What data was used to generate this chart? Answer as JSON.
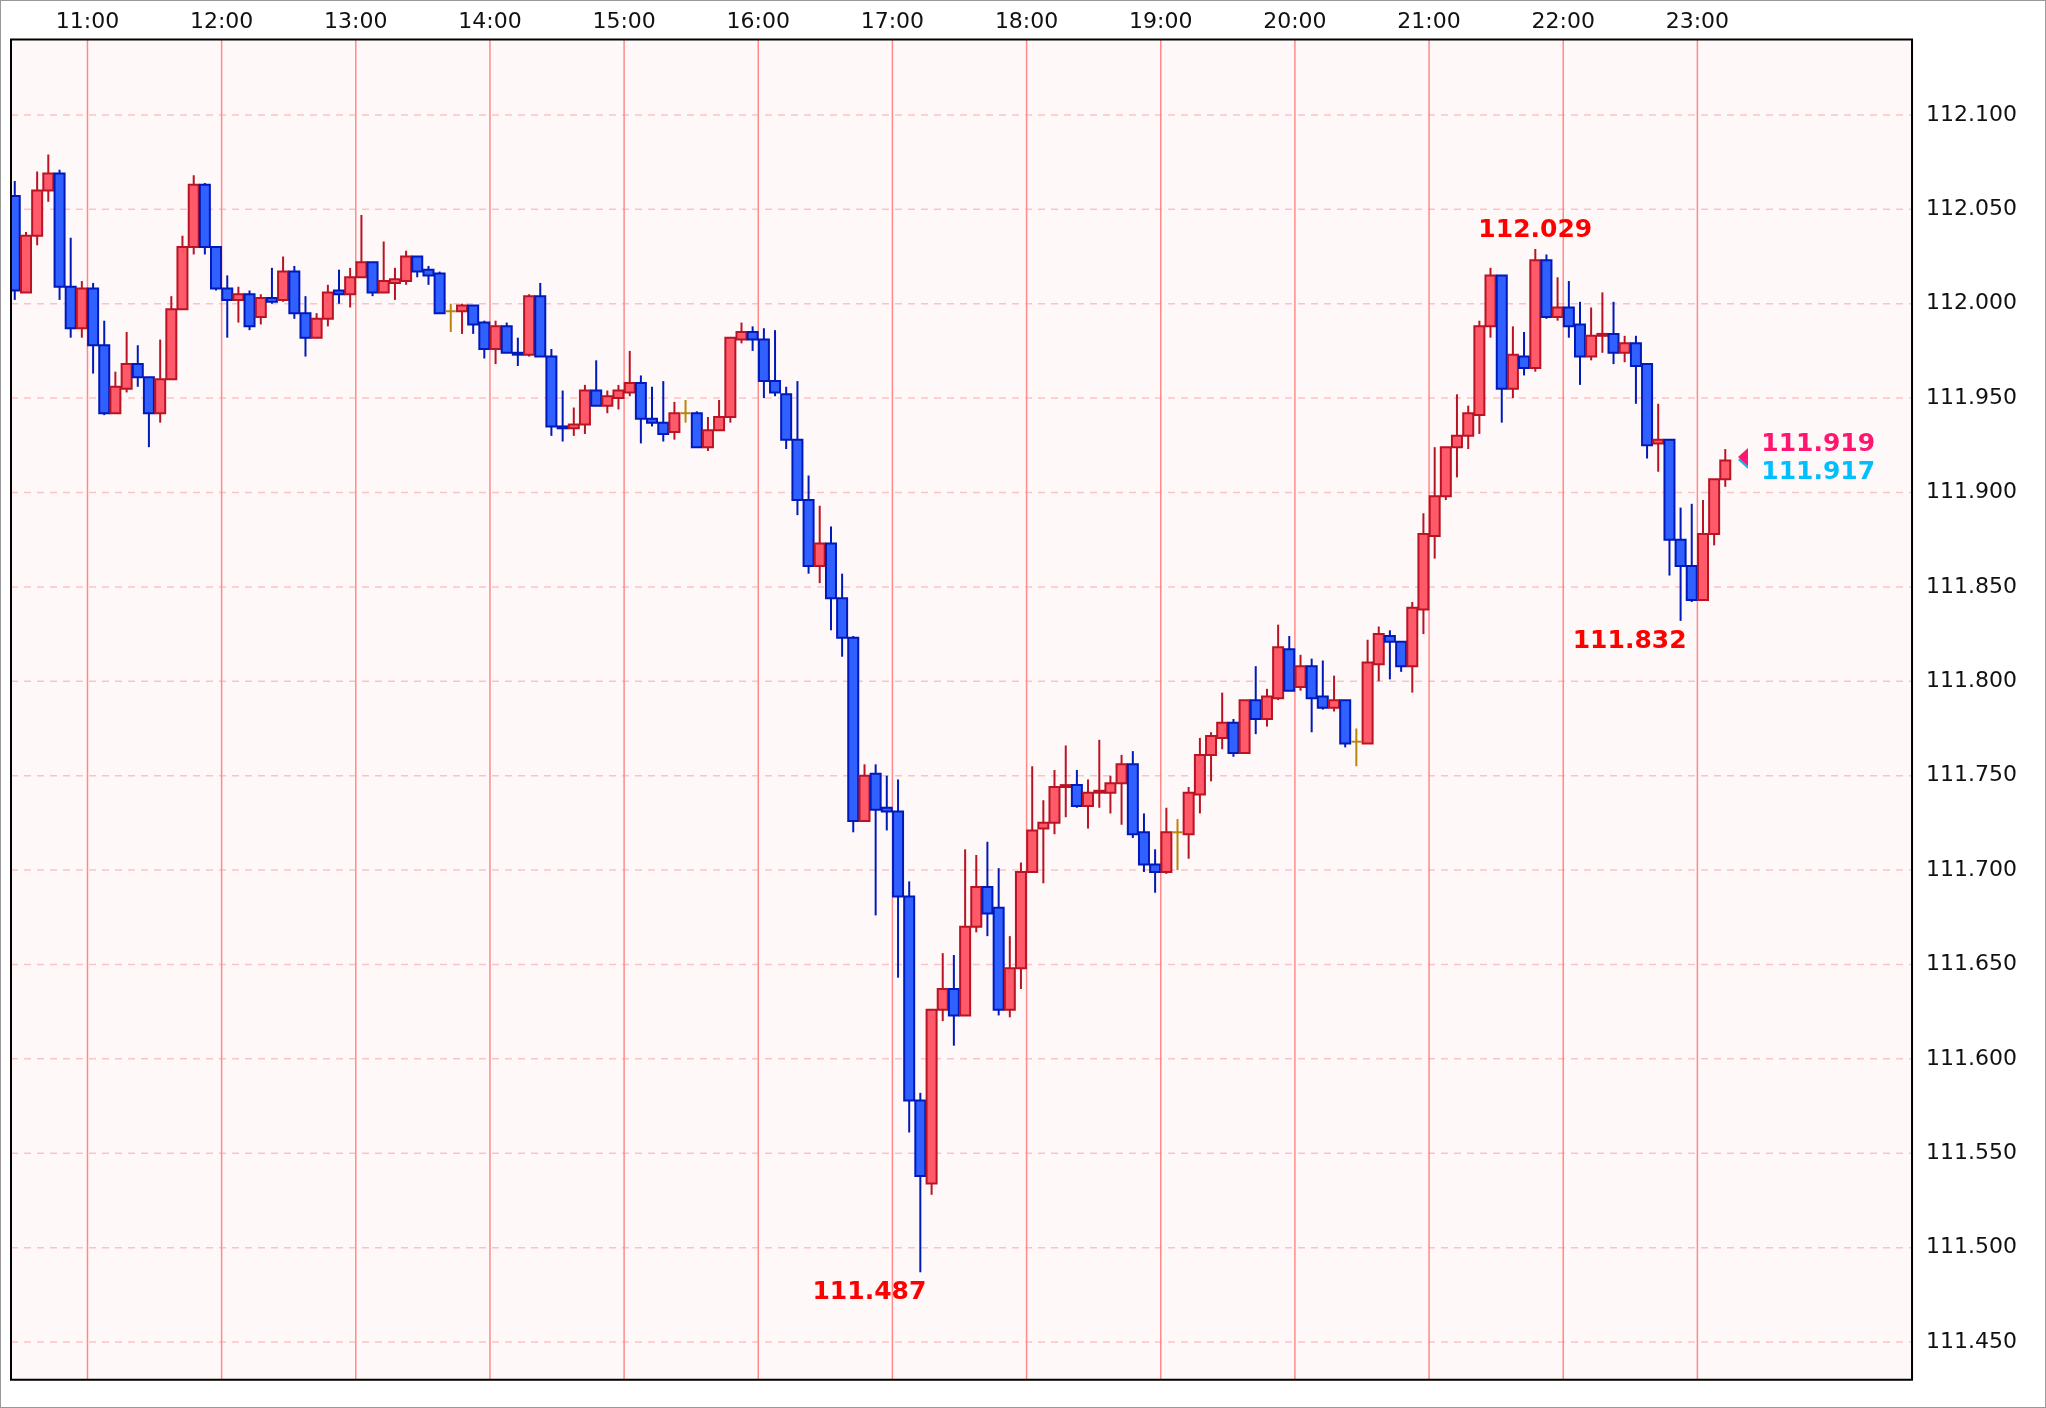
{
  "chart_data": {
    "type": "candlestick",
    "x": [
      10.458,
      10.542,
      10.625,
      10.708,
      10.792,
      10.875,
      10.958,
      11.042,
      11.125,
      11.208,
      11.292,
      11.375,
      11.458,
      11.542,
      11.625,
      11.708,
      11.792,
      11.875,
      11.958,
      12.042,
      12.125,
      12.208,
      12.292,
      12.375,
      12.458,
      12.542,
      12.625,
      12.708,
      12.792,
      12.875,
      12.958,
      13.042,
      13.125,
      13.208,
      13.292,
      13.375,
      13.458,
      13.542,
      13.625,
      13.708,
      13.792,
      13.875,
      13.958,
      14.042,
      14.125,
      14.208,
      14.292,
      14.375,
      14.458,
      14.542,
      14.625,
      14.708,
      14.792,
      14.875,
      14.958,
      15.042,
      15.125,
      15.208,
      15.292,
      15.375,
      15.458,
      15.542,
      15.625,
      15.708,
      15.792,
      15.875,
      15.958,
      16.042,
      16.125,
      16.208,
      16.292,
      16.375,
      16.458,
      16.542,
      16.625,
      16.708,
      16.792,
      16.875,
      16.958,
      17.042,
      17.125,
      17.208,
      17.292,
      17.375,
      17.458,
      17.542,
      17.625,
      17.708,
      17.792,
      17.875,
      17.958,
      18.042,
      18.125,
      18.208,
      18.292,
      18.375,
      18.458,
      18.542,
      18.625,
      18.708,
      18.792,
      18.875,
      18.958,
      19.042,
      19.125,
      19.208,
      19.292,
      19.375,
      19.458,
      19.542,
      19.625,
      19.708,
      19.792,
      19.875,
      19.958,
      20.042,
      20.125,
      20.208,
      20.292,
      20.375,
      20.458,
      20.542,
      20.625,
      20.708,
      20.792,
      20.875,
      20.958,
      21.042,
      21.125,
      21.208,
      21.292,
      21.375,
      21.458,
      21.542,
      21.625,
      21.708,
      21.792,
      21.875,
      21.958,
      22.042,
      22.125,
      22.208,
      22.292,
      22.375,
      22.458,
      22.542,
      22.625,
      22.708,
      22.792,
      22.875,
      22.958,
      23.042,
      23.125,
      23.208
    ],
    "ohlc": [
      [
        112.057,
        112.065,
        112.002,
        112.007
      ],
      [
        112.006,
        112.038,
        112.006,
        112.036
      ],
      [
        112.036,
        112.07,
        112.031,
        112.06
      ],
      [
        112.06,
        112.079,
        112.054,
        112.069
      ],
      [
        112.069,
        112.071,
        112.002,
        112.009
      ],
      [
        112.009,
        112.035,
        111.982,
        111.987
      ],
      [
        111.987,
        112.012,
        111.982,
        112.008
      ],
      [
        112.008,
        112.011,
        111.963,
        111.978
      ],
      [
        111.978,
        111.991,
        111.941,
        111.942
      ],
      [
        111.942,
        111.964,
        111.942,
        111.956
      ],
      [
        111.955,
        111.985,
        111.953,
        111.968
      ],
      [
        111.968,
        111.978,
        111.956,
        111.961
      ],
      [
        111.961,
        111.961,
        111.924,
        111.942
      ],
      [
        111.942,
        111.981,
        111.937,
        111.96
      ],
      [
        111.96,
        112.004,
        111.96,
        111.997
      ],
      [
        111.997,
        112.036,
        111.997,
        112.03
      ],
      [
        112.03,
        112.068,
        112.026,
        112.063
      ],
      [
        112.063,
        112.064,
        112.026,
        112.03
      ],
      [
        112.03,
        112.03,
        112.007,
        112.008
      ],
      [
        112.008,
        112.015,
        111.982,
        112.002
      ],
      [
        112.002,
        112.009,
        111.99,
        112.005
      ],
      [
        112.005,
        112.007,
        111.986,
        111.988
      ],
      [
        111.993,
        112.005,
        111.989,
        112.003
      ],
      [
        112.003,
        112.019,
        112.0,
        112.001
      ],
      [
        112.002,
        112.025,
        112.001,
        112.017
      ],
      [
        112.017,
        112.02,
        111.992,
        111.995
      ],
      [
        111.995,
        112.004,
        111.972,
        111.982
      ],
      [
        111.982,
        111.995,
        111.982,
        111.992
      ],
      [
        111.992,
        112.01,
        111.988,
        112.006
      ],
      [
        112.007,
        112.018,
        112.0,
        112.005
      ],
      [
        112.005,
        112.019,
        111.998,
        112.014
      ],
      [
        112.014,
        112.047,
        112.014,
        112.022
      ],
      [
        112.022,
        112.022,
        112.004,
        112.006
      ],
      [
        112.006,
        112.033,
        112.006,
        112.012
      ],
      [
        112.011,
        112.019,
        112.002,
        112.013
      ],
      [
        112.012,
        112.028,
        112.01,
        112.025
      ],
      [
        112.025,
        112.025,
        112.014,
        112.017
      ],
      [
        112.018,
        112.02,
        112.01,
        112.015
      ],
      [
        112.016,
        112.017,
        111.995,
        111.995
      ],
      [
        111.996,
        112.0,
        111.985,
        111.996
      ],
      [
        111.996,
        112.0,
        111.984,
        111.999
      ],
      [
        111.999,
        111.999,
        111.984,
        111.989
      ],
      [
        111.99,
        111.991,
        111.971,
        111.976
      ],
      [
        111.976,
        111.991,
        111.968,
        111.988
      ],
      [
        111.988,
        111.99,
        111.974,
        111.974
      ],
      [
        111.974,
        111.982,
        111.967,
        111.973
      ],
      [
        111.973,
        112.005,
        111.972,
        112.004
      ],
      [
        112.004,
        112.011,
        111.972,
        111.972
      ],
      [
        111.972,
        111.976,
        111.93,
        111.935
      ],
      [
        111.935,
        111.954,
        111.927,
        111.934
      ],
      [
        111.934,
        111.945,
        111.93,
        111.936
      ],
      [
        111.936,
        111.957,
        111.931,
        111.954
      ],
      [
        111.954,
        111.97,
        111.946,
        111.946
      ],
      [
        111.946,
        111.954,
        111.942,
        111.951
      ],
      [
        111.95,
        111.957,
        111.944,
        111.954
      ],
      [
        111.953,
        111.975,
        111.951,
        111.958
      ],
      [
        111.958,
        111.962,
        111.926,
        111.939
      ],
      [
        111.939,
        111.956,
        111.935,
        111.937
      ],
      [
        111.937,
        111.959,
        111.927,
        111.931
      ],
      [
        111.932,
        111.948,
        111.928,
        111.942
      ],
      [
        111.942,
        111.949,
        111.937,
        111.942
      ],
      [
        111.942,
        111.943,
        111.924,
        111.924
      ],
      [
        111.924,
        111.94,
        111.922,
        111.933
      ],
      [
        111.933,
        111.949,
        111.933,
        111.94
      ],
      [
        111.94,
        111.982,
        111.937,
        111.982
      ],
      [
        111.981,
        111.99,
        111.979,
        111.985
      ],
      [
        111.985,
        111.988,
        111.975,
        111.981
      ],
      [
        111.981,
        111.987,
        111.95,
        111.959
      ],
      [
        111.959,
        111.986,
        111.951,
        111.953
      ],
      [
        111.952,
        111.956,
        111.923,
        111.928
      ],
      [
        111.928,
        111.959,
        111.888,
        111.896
      ],
      [
        111.896,
        111.909,
        111.857,
        111.861
      ],
      [
        111.861,
        111.893,
        111.852,
        111.873
      ],
      [
        111.873,
        111.882,
        111.827,
        111.844
      ],
      [
        111.844,
        111.857,
        111.813,
        111.823
      ],
      [
        111.823,
        111.824,
        111.72,
        111.726
      ],
      [
        111.726,
        111.756,
        111.726,
        111.75
      ],
      [
        111.751,
        111.756,
        111.676,
        111.732
      ],
      [
        111.733,
        111.75,
        111.721,
        111.731
      ],
      [
        111.731,
        111.748,
        111.643,
        111.686
      ],
      [
        111.686,
        111.694,
        111.561,
        111.578
      ],
      [
        111.578,
        111.582,
        111.487,
        111.538
      ],
      [
        111.534,
        111.626,
        111.528,
        111.626
      ],
      [
        111.626,
        111.656,
        111.62,
        111.637
      ],
      [
        111.637,
        111.655,
        111.607,
        111.623
      ],
      [
        111.623,
        111.711,
        111.623,
        111.67
      ],
      [
        111.67,
        111.708,
        111.667,
        111.691
      ],
      [
        111.691,
        111.715,
        111.665,
        111.677
      ],
      [
        111.68,
        111.701,
        111.623,
        111.626
      ],
      [
        111.626,
        111.665,
        111.622,
        111.648
      ],
      [
        111.648,
        111.704,
        111.637,
        111.699
      ],
      [
        111.699,
        111.755,
        111.699,
        111.721
      ],
      [
        111.722,
        111.737,
        111.693,
        111.725
      ],
      [
        111.725,
        111.753,
        111.719,
        111.744
      ],
      [
        111.744,
        111.766,
        111.728,
        111.745
      ],
      [
        111.745,
        111.753,
        111.733,
        111.734
      ],
      [
        111.734,
        111.748,
        111.722,
        111.741
      ],
      [
        111.741,
        111.769,
        111.733,
        111.742
      ],
      [
        111.741,
        111.75,
        111.73,
        111.746
      ],
      [
        111.746,
        111.761,
        111.724,
        111.756
      ],
      [
        111.756,
        111.763,
        111.717,
        111.719
      ],
      [
        111.72,
        111.73,
        111.699,
        111.703
      ],
      [
        111.703,
        111.711,
        111.688,
        111.699
      ],
      [
        111.699,
        111.733,
        111.698,
        111.72
      ],
      [
        111.72,
        111.727,
        111.7,
        111.72
      ],
      [
        111.719,
        111.744,
        111.706,
        111.741
      ],
      [
        111.74,
        111.77,
        111.73,
        111.761
      ],
      [
        111.761,
        111.773,
        111.747,
        111.771
      ],
      [
        111.77,
        111.794,
        111.764,
        111.778
      ],
      [
        111.778,
        111.78,
        111.76,
        111.762
      ],
      [
        111.762,
        111.79,
        111.762,
        111.79
      ],
      [
        111.79,
        111.808,
        111.772,
        111.78
      ],
      [
        111.78,
        111.796,
        111.776,
        111.792
      ],
      [
        111.791,
        111.83,
        111.79,
        111.818
      ],
      [
        111.817,
        111.824,
        111.795,
        111.795
      ],
      [
        111.797,
        111.814,
        111.795,
        111.808
      ],
      [
        111.808,
        111.812,
        111.773,
        111.791
      ],
      [
        111.792,
        111.811,
        111.785,
        111.786
      ],
      [
        111.786,
        111.803,
        111.784,
        111.79
      ],
      [
        111.79,
        111.79,
        111.765,
        111.767
      ],
      [
        111.768,
        111.775,
        111.755,
        111.768
      ],
      [
        111.767,
        111.822,
        111.767,
        111.81
      ],
      [
        111.809,
        111.829,
        111.8,
        111.825
      ],
      [
        111.824,
        111.827,
        111.801,
        111.821
      ],
      [
        111.821,
        111.821,
        111.805,
        111.808
      ],
      [
        111.808,
        111.842,
        111.794,
        111.839
      ],
      [
        111.838,
        111.889,
        111.825,
        111.878
      ],
      [
        111.877,
        111.924,
        111.865,
        111.898
      ],
      [
        111.898,
        111.924,
        111.896,
        111.924
      ],
      [
        111.924,
        111.952,
        111.908,
        111.93
      ],
      [
        111.93,
        111.946,
        111.923,
        111.942
      ],
      [
        111.941,
        111.991,
        111.931,
        111.988
      ],
      [
        111.988,
        112.019,
        111.982,
        112.015
      ],
      [
        112.015,
        112.015,
        111.937,
        111.955
      ],
      [
        111.955,
        111.988,
        111.95,
        111.973
      ],
      [
        111.972,
        111.985,
        111.962,
        111.966
      ],
      [
        111.966,
        112.029,
        111.964,
        112.023
      ],
      [
        112.023,
        112.026,
        111.992,
        111.993
      ],
      [
        111.993,
        112.014,
        111.991,
        111.998
      ],
      [
        111.998,
        112.012,
        111.982,
        111.988
      ],
      [
        111.989,
        112.001,
        111.957,
        111.972
      ],
      [
        111.972,
        111.998,
        111.97,
        111.983
      ],
      [
        111.983,
        112.006,
        111.974,
        111.984
      ],
      [
        111.984,
        112.001,
        111.968,
        111.974
      ],
      [
        111.974,
        111.983,
        111.969,
        111.979
      ],
      [
        111.979,
        111.983,
        111.947,
        111.967
      ],
      [
        111.968,
        111.968,
        111.918,
        111.925
      ],
      [
        111.926,
        111.947,
        111.911,
        111.928
      ],
      [
        111.928,
        111.928,
        111.856,
        111.875
      ],
      [
        111.875,
        111.892,
        111.832,
        111.861
      ],
      [
        111.861,
        111.894,
        111.842,
        111.843
      ],
      [
        111.843,
        111.896,
        111.843,
        111.878
      ],
      [
        111.878,
        111.907,
        111.872,
        111.907
      ],
      [
        111.907,
        111.923,
        111.903,
        111.917
      ]
    ],
    "colors": [
      "#3060ff",
      "#ff5a6a",
      "#ff5a6a",
      "#ff5a6a",
      "#3060ff",
      "#3060ff",
      "#ff5a6a",
      "#3060ff",
      "#3060ff",
      "#ff5a6a",
      "#ff5a6a",
      "#3060ff",
      "#3060ff",
      "#ff5a6a",
      "#ff5a6a",
      "#ff5a6a",
      "#ff5a6a",
      "#3060ff",
      "#3060ff",
      "#3060ff",
      "#ff5a6a",
      "#3060ff",
      "#ff5a6a",
      "#3060ff",
      "#ff5a6a",
      "#3060ff",
      "#3060ff",
      "#ff5a6a",
      "#ff5a6a",
      "#3060ff",
      "#ff5a6a",
      "#ff5a6a",
      "#3060ff",
      "#ff5a6a",
      "#ff5a6a",
      "#ff5a6a",
      "#3060ff",
      "#3060ff",
      "#3060ff",
      "#b8860b",
      "#ff5a6a",
      "#3060ff",
      "#3060ff",
      "#ff5a6a",
      "#3060ff",
      "#3060ff",
      "#ff5a6a",
      "#3060ff",
      "#3060ff",
      "#3060ff",
      "#ff5a6a",
      "#ff5a6a",
      "#3060ff",
      "#ff5a6a",
      "#ff5a6a",
      "#ff5a6a",
      "#3060ff",
      "#3060ff",
      "#3060ff",
      "#ff5a6a",
      "#b8860b",
      "#3060ff",
      "#ff5a6a",
      "#ff5a6a",
      "#ff5a6a",
      "#ff5a6a",
      "#3060ff",
      "#3060ff",
      "#3060ff",
      "#3060ff",
      "#3060ff",
      "#3060ff",
      "#ff5a6a",
      "#3060ff",
      "#3060ff",
      "#3060ff",
      "#ff5a6a",
      "#3060ff",
      "#3060ff",
      "#3060ff",
      "#3060ff",
      "#3060ff",
      "#ff5a6a",
      "#ff5a6a",
      "#3060ff",
      "#ff5a6a",
      "#ff5a6a",
      "#3060ff",
      "#3060ff",
      "#ff5a6a",
      "#ff5a6a",
      "#ff5a6a",
      "#ff5a6a",
      "#ff5a6a",
      "#ff5a6a",
      "#3060ff",
      "#ff5a6a",
      "#ff5a6a",
      "#ff5a6a",
      "#ff5a6a",
      "#3060ff",
      "#3060ff",
      "#3060ff",
      "#ff5a6a",
      "#b8860b",
      "#ff5a6a",
      "#ff5a6a",
      "#ff5a6a",
      "#ff5a6a",
      "#3060ff",
      "#ff5a6a",
      "#3060ff",
      "#ff5a6a",
      "#ff5a6a",
      "#3060ff",
      "#ff5a6a",
      "#3060ff",
      "#3060ff",
      "#ff5a6a",
      "#3060ff",
      "#b8860b",
      "#ff5a6a",
      "#ff5a6a",
      "#3060ff",
      "#3060ff",
      "#ff5a6a",
      "#ff5a6a",
      "#ff5a6a",
      "#ff5a6a",
      "#ff5a6a",
      "#ff5a6a",
      "#ff5a6a",
      "#ff5a6a",
      "#3060ff",
      "#ff5a6a",
      "#3060ff",
      "#ff5a6a",
      "#3060ff",
      "#ff5a6a",
      "#3060ff",
      "#3060ff",
      "#ff5a6a",
      "#ff5a6a",
      "#3060ff",
      "#ff5a6a",
      "#3060ff",
      "#3060ff",
      "#ff5a6a",
      "#3060ff",
      "#3060ff",
      "#3060ff",
      "#ff5a6a",
      "#ff5a6a",
      "#ff5a6a"
    ],
    "xlim": [
      10.43,
      24.6
    ],
    "xticks": [
      {
        "value": 11,
        "label": "11:00"
      },
      {
        "value": 12,
        "label": "12:00"
      },
      {
        "value": 13,
        "label": "13:00"
      },
      {
        "value": 14,
        "label": "14:00"
      },
      {
        "value": 15,
        "label": "15:00"
      },
      {
        "value": 16,
        "label": "16:00"
      },
      {
        "value": 17,
        "label": "17:00"
      },
      {
        "value": 18,
        "label": "18:00"
      },
      {
        "value": 19,
        "label": "19:00"
      },
      {
        "value": 20,
        "label": "20:00"
      },
      {
        "value": 21,
        "label": "21:00"
      },
      {
        "value": 22,
        "label": "22:00"
      },
      {
        "value": 23,
        "label": "23:00"
      }
    ],
    "ylim": [
      111.43,
      112.14
    ],
    "yticks": [
      {
        "value": 111.45,
        "label": "111.450"
      },
      {
        "value": 111.5,
        "label": "111.500"
      },
      {
        "value": 111.55,
        "label": "111.550"
      },
      {
        "value": 111.6,
        "label": "111.600"
      },
      {
        "value": 111.65,
        "label": "111.650"
      },
      {
        "value": 111.7,
        "label": "111.700"
      },
      {
        "value": 111.75,
        "label": "111.750"
      },
      {
        "value": 111.8,
        "label": "111.800"
      },
      {
        "value": 111.85,
        "label": "111.850"
      },
      {
        "value": 111.9,
        "label": "111.900"
      },
      {
        "value": 111.95,
        "label": "111.950"
      },
      {
        "value": 112.0,
        "label": "112.000"
      },
      {
        "value": 112.05,
        "label": "112.050"
      },
      {
        "value": 112.1,
        "label": "112.100"
      }
    ],
    "grid": true,
    "annotations": [
      {
        "text": "112.029",
        "x": 21.792,
        "y": 112.029
      },
      {
        "text": "111.487",
        "x": 17.208,
        "y": 111.487
      },
      {
        "text": "111.832",
        "x": 22.875,
        "y": 111.832
      },
      {
        "text": "111.919",
        "x": 23.208,
        "y": 111.919
      },
      {
        "text": "111.917",
        "x": 23.208,
        "y": 111.917
      }
    ]
  }
}
